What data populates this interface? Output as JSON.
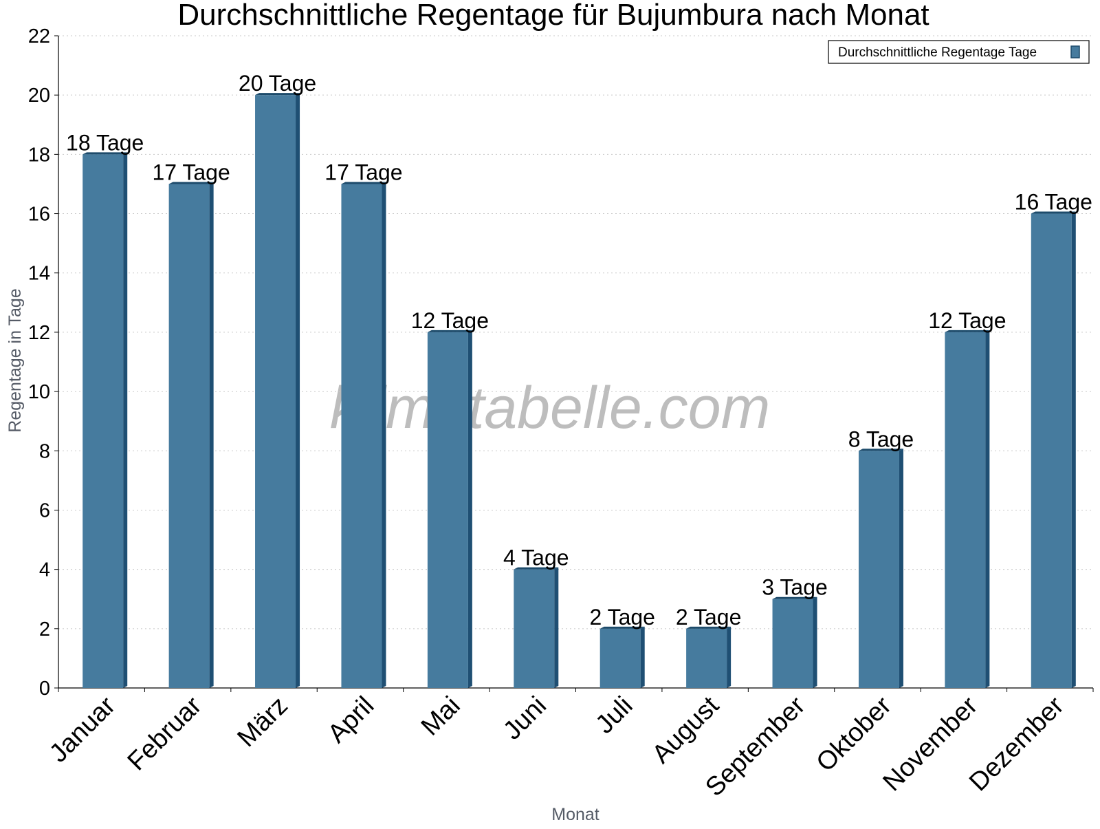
{
  "chart_data": {
    "type": "bar",
    "title": "Durchschnittliche Regentage für Bujumbura nach Monat",
    "xlabel": "Monat",
    "ylabel": "Regentage in Tage",
    "categories": [
      "Januar",
      "Februar",
      "März",
      "April",
      "Mai",
      "Juni",
      "Juli",
      "August",
      "September",
      "Oktober",
      "November",
      "Dezember"
    ],
    "series": [
      {
        "name": "Durchschnittliche Regentage Tage",
        "values": [
          18,
          17,
          20,
          17,
          12,
          4,
          2,
          2,
          3,
          8,
          12,
          16
        ],
        "labels": [
          "18 Tage",
          "17 Tage",
          "20 Tage",
          "17 Tage",
          "12 Tage",
          "4 Tage",
          "2 Tage",
          "2 Tage",
          "3 Tage",
          "8 Tage",
          "12 Tage",
          "16 Tage"
        ]
      }
    ],
    "ylim": [
      0,
      22
    ],
    "yticks": [
      "0",
      "2",
      "4",
      "6",
      "8",
      "10",
      "12",
      "14",
      "16",
      "18",
      "20",
      "22"
    ],
    "grid": true,
    "legend_position": "top-right",
    "watermark": "klimatabelle.com",
    "colors": {
      "bar_front": "#467b9e",
      "bar_side": "#1f4f73",
      "bar_top": "#1d4b6b",
      "grid": "#c8c8c8",
      "axis": "#000000"
    }
  }
}
